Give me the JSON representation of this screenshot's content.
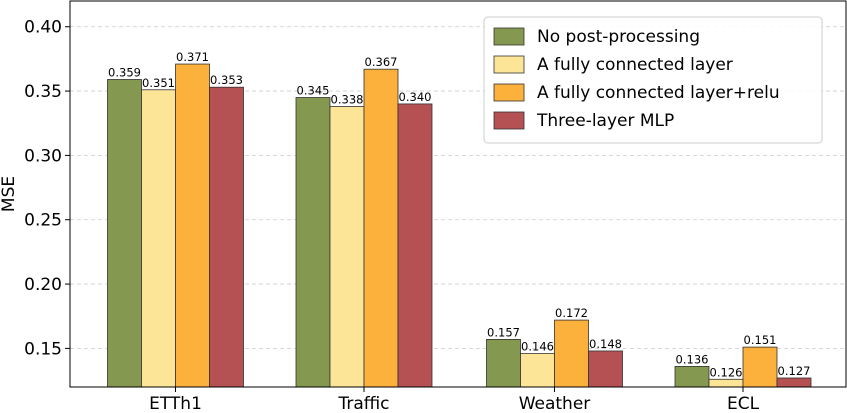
{
  "chart_data": {
    "type": "bar",
    "title": "",
    "xlabel": "",
    "ylabel": "MSE",
    "ylim": [
      0.12,
      0.42
    ],
    "yticks": [
      "0.15",
      "0.20",
      "0.25",
      "0.30",
      "0.35",
      "0.40"
    ],
    "categories": [
      "ETTh1",
      "Traffic",
      "Weather",
      "ECL"
    ],
    "series": [
      {
        "name": "No post-processing",
        "color": "#84994f",
        "values": [
          0.359,
          0.345,
          0.157,
          0.136
        ],
        "labels": [
          "0.359",
          "0.345",
          "0.157",
          "0.136"
        ]
      },
      {
        "name": "A fully connected layer",
        "color": "#fde598",
        "values": [
          0.351,
          0.338,
          0.146,
          0.126
        ],
        "labels": [
          "0.351",
          "0.338",
          "0.146",
          "0.126"
        ]
      },
      {
        "name": "A fully connected layer+relu",
        "color": "#fbb13c",
        "values": [
          0.371,
          0.367,
          0.172,
          0.151
        ],
        "labels": [
          "0.371",
          "0.367",
          "0.172",
          "0.151"
        ]
      },
      {
        "name": "Three-layer MLP",
        "color": "#b55153",
        "values": [
          0.353,
          0.34,
          0.148,
          0.127
        ],
        "labels": [
          "0.353",
          "0.340",
          "0.148",
          "0.127"
        ]
      }
    ],
    "grid": "horizontal-dashed",
    "legend_position": "top-right"
  }
}
